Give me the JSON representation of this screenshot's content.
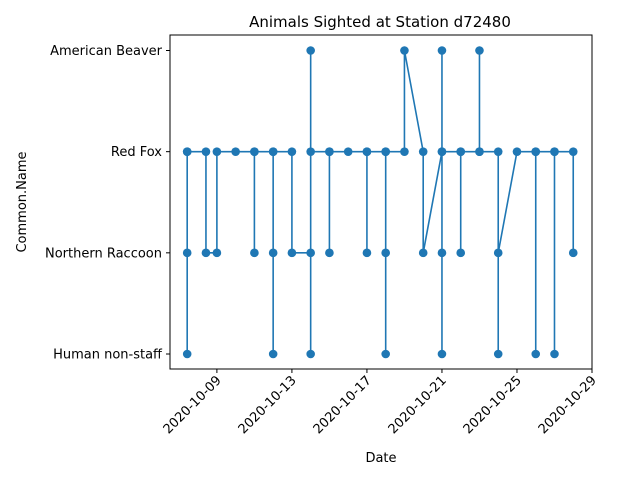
{
  "chart_data": {
    "type": "line",
    "title": "Animals Sighted at Station d72480",
    "xlabel": "Date",
    "ylabel": "Common.Name",
    "categories": [
      "Human non-staff",
      "Northern Raccoon",
      "Red Fox",
      "American Beaver"
    ],
    "x_ticks": [
      "2020-10-09",
      "2020-10-13",
      "2020-10-17",
      "2020-10-21",
      "2020-10-25",
      "2020-10-29"
    ],
    "x_range": [
      "2020-10-06T12:00",
      "2020-10-29T00:00"
    ],
    "grid": false,
    "color": "#1f77b4",
    "series": [
      {
        "points": [
          [
            "2020-10-07T10:00",
            "Red Fox"
          ],
          [
            "2020-10-07T10:00",
            "Northern Raccoon"
          ],
          [
            "2020-10-07T10:00",
            "Human non-staff"
          ],
          [
            "2020-10-07T10:00",
            "Red Fox"
          ],
          [
            "2020-10-08T10:00",
            "Red Fox"
          ],
          [
            "2020-10-08T10:00",
            "Northern Raccoon"
          ],
          [
            "2020-10-09T00:00",
            "Northern Raccoon"
          ],
          [
            "2020-10-09T00:00",
            "Red Fox"
          ],
          [
            "2020-10-10T00:00",
            "Red Fox"
          ],
          [
            "2020-10-11T00:00",
            "Red Fox"
          ],
          [
            "2020-10-11T00:00",
            "Northern Raccoon"
          ],
          [
            "2020-10-11T00:00",
            "Red Fox"
          ],
          [
            "2020-10-12T00:00",
            "Red Fox"
          ],
          [
            "2020-10-12T00:00",
            "Human non-staff"
          ],
          [
            "2020-10-12T00:00",
            "Northern Raccoon"
          ],
          [
            "2020-10-12T00:00",
            "Red Fox"
          ],
          [
            "2020-10-13T00:00",
            "Red Fox"
          ],
          [
            "2020-10-13T00:00",
            "Northern Raccoon"
          ],
          [
            "2020-10-14T00:00",
            "Northern Raccoon"
          ],
          [
            "2020-10-14T00:00",
            "American Beaver"
          ],
          [
            "2020-10-14T00:00",
            "Human non-staff"
          ],
          [
            "2020-10-14T00:00",
            "Red Fox"
          ],
          [
            "2020-10-15T00:00",
            "Red Fox"
          ],
          [
            "2020-10-15T00:00",
            "Northern Raccoon"
          ],
          [
            "2020-10-15T00:00",
            "Red Fox"
          ],
          [
            "2020-10-16T00:00",
            "Red Fox"
          ],
          [
            "2020-10-17T00:00",
            "Red Fox"
          ],
          [
            "2020-10-17T00:00",
            "Northern Raccoon"
          ],
          [
            "2020-10-17T00:00",
            "Red Fox"
          ],
          [
            "2020-10-18T00:00",
            "Red Fox"
          ],
          [
            "2020-10-18T00:00",
            "Human non-staff"
          ],
          [
            "2020-10-18T00:00",
            "Northern Raccoon"
          ],
          [
            "2020-10-18T00:00",
            "Red Fox"
          ],
          [
            "2020-10-19T00:00",
            "Red Fox"
          ],
          [
            "2020-10-19T00:00",
            "American Beaver"
          ],
          [
            "2020-10-20T00:00",
            "Red Fox"
          ],
          [
            "2020-10-20T00:00",
            "Northern Raccoon"
          ],
          [
            "2020-10-21T00:00",
            "Red Fox"
          ],
          [
            "2020-10-21T00:00",
            "American Beaver"
          ],
          [
            "2020-10-21T00:00",
            "Human non-staff"
          ],
          [
            "2020-10-21T00:00",
            "Northern Raccoon"
          ],
          [
            "2020-10-21T00:00",
            "Red Fox"
          ],
          [
            "2020-10-22T00:00",
            "Red Fox"
          ],
          [
            "2020-10-22T00:00",
            "Northern Raccoon"
          ],
          [
            "2020-10-22T00:00",
            "Red Fox"
          ],
          [
            "2020-10-23T00:00",
            "Red Fox"
          ],
          [
            "2020-10-23T00:00",
            "American Beaver"
          ],
          [
            "2020-10-23T00:00",
            "Red Fox"
          ],
          [
            "2020-10-24T00:00",
            "Red Fox"
          ],
          [
            "2020-10-24T00:00",
            "Human non-staff"
          ],
          [
            "2020-10-24T00:00",
            "Northern Raccoon"
          ],
          [
            "2020-10-25T00:00",
            "Red Fox"
          ],
          [
            "2020-10-26T00:00",
            "Red Fox"
          ],
          [
            "2020-10-26T00:00",
            "Human non-staff"
          ],
          [
            "2020-10-26T00:00",
            "Red Fox"
          ],
          [
            "2020-10-27T00:00",
            "Red Fox"
          ],
          [
            "2020-10-27T00:00",
            "Human non-staff"
          ],
          [
            "2020-10-27T00:00",
            "Red Fox"
          ],
          [
            "2020-10-28T00:00",
            "Red Fox"
          ],
          [
            "2020-10-28T00:00",
            "Northern Raccoon"
          ]
        ]
      }
    ]
  }
}
